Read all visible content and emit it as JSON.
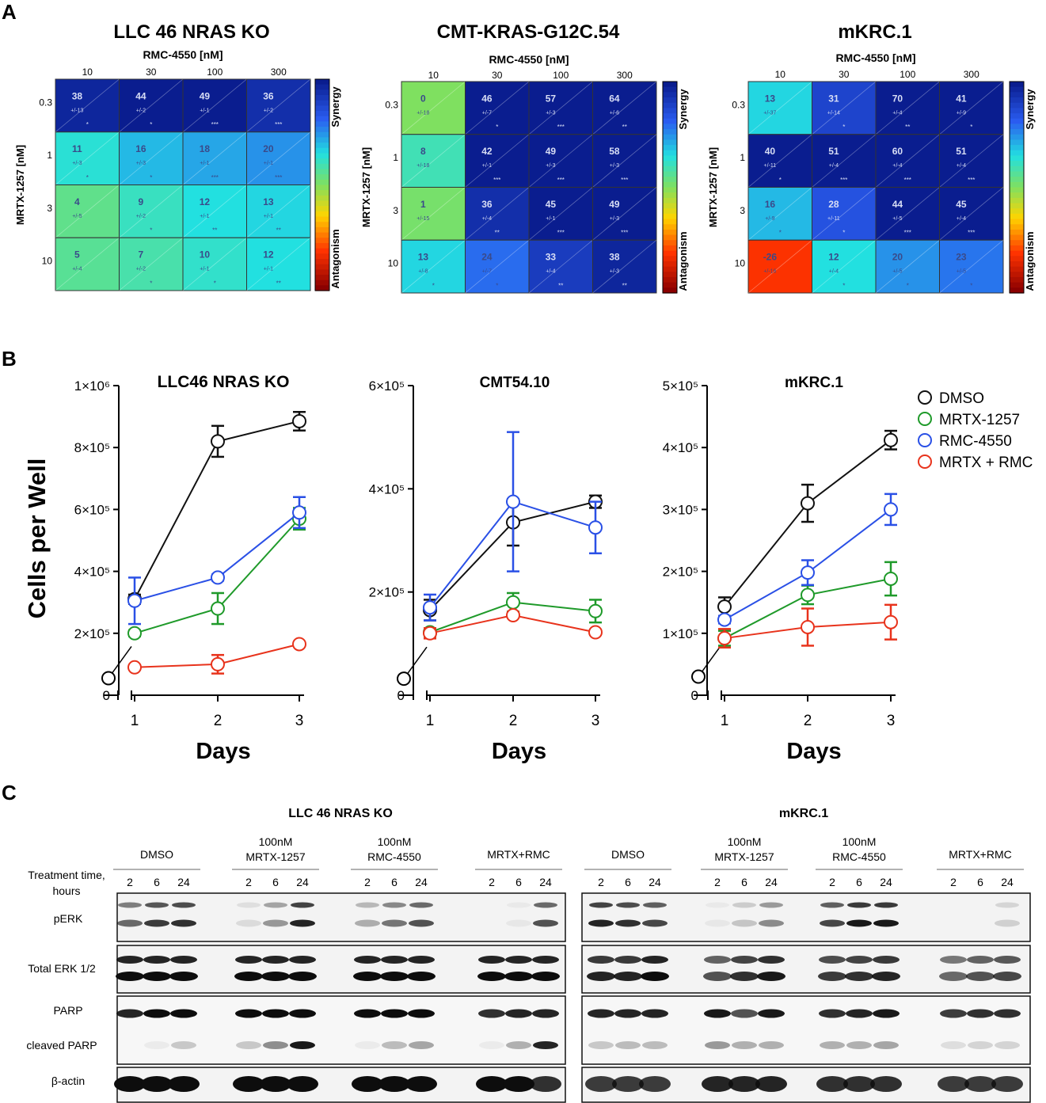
{
  "panel_labels": [
    "A",
    "B",
    "C"
  ],
  "colors": {
    "dmso": "#111111",
    "mrtx": "#1f9a2a",
    "rmc": "#2a50e6",
    "combo": "#e8331c"
  },
  "panelA": {
    "x_title": "RMC-4550 [nM]",
    "y_title": "MRTX-1257 [nM]",
    "x_ticks": [
      "10",
      "30",
      "100",
      "300"
    ],
    "y_ticks": [
      "0.3",
      "1",
      "3",
      "10"
    ],
    "cbar_top": "Synergy",
    "cbar_bottom": "Antagonism",
    "heatmaps": [
      {
        "title": "LLC 46 NRAS KO",
        "values": [
          [
            38,
            44,
            49,
            36
          ],
          [
            11,
            16,
            18,
            20
          ],
          [
            4,
            9,
            12,
            13
          ],
          [
            5,
            7,
            10,
            12
          ]
        ],
        "errors": [
          [
            "+/-13",
            "+/-2",
            "+/-1",
            "+/-2"
          ],
          [
            "+/-3",
            "+/-3",
            "+/-1",
            "+/-1"
          ],
          [
            "+/-5",
            "+/-2",
            "+/-1",
            "+/-1"
          ],
          [
            "+/-4",
            "+/-2",
            "+/-1",
            "+/-1"
          ]
        ],
        "sig": [
          [
            "*",
            "*",
            "***",
            "***"
          ],
          [
            "*",
            "*",
            "***",
            "***"
          ],
          [
            "",
            "*",
            "**",
            "**"
          ],
          [
            "",
            "*",
            "*",
            "**"
          ]
        ]
      },
      {
        "title": "CMT-KRAS-G12C.54",
        "values": [
          [
            0,
            46,
            57,
            64
          ],
          [
            8,
            42,
            49,
            58
          ],
          [
            1,
            36,
            45,
            49
          ],
          [
            13,
            24,
            33,
            38
          ]
        ],
        "errors": [
          [
            "+/-18",
            "+/-7",
            "+/-3",
            "+/-6"
          ],
          [
            "+/-18",
            "+/-1",
            "+/-3",
            "+/-3"
          ],
          [
            "+/-15",
            "+/-4",
            "+/-1",
            "+/-3"
          ],
          [
            "+/-8",
            "+/-7",
            "+/-4",
            "+/-3"
          ]
        ],
        "sig": [
          [
            "",
            "*",
            "***",
            "**"
          ],
          [
            "",
            "***",
            "***",
            "***"
          ],
          [
            "",
            "**",
            "***",
            "***"
          ],
          [
            "*",
            "*",
            "**",
            "**"
          ]
        ]
      },
      {
        "title": "mKRC.1",
        "values": [
          [
            13,
            31,
            70,
            41
          ],
          [
            40,
            51,
            60,
            51
          ],
          [
            16,
            28,
            44,
            45
          ],
          [
            -26,
            12,
            20,
            23
          ]
        ],
        "errors": [
          [
            "+/-37",
            "+/-14",
            "+/-4",
            "+/-9"
          ],
          [
            "+/-11",
            "+/-4",
            "+/-4",
            "+/-4"
          ],
          [
            "+/-9",
            "+/-11",
            "+/-5",
            "+/-4"
          ],
          [
            "+/-16",
            "+/-4",
            "+/-5",
            "+/-5"
          ]
        ],
        "sig": [
          [
            "",
            "*",
            "**",
            "*"
          ],
          [
            "*",
            "***",
            "***",
            "***"
          ],
          [
            "*",
            "*",
            "***",
            "***"
          ],
          [
            "",
            "*",
            "*",
            "*"
          ]
        ]
      }
    ]
  },
  "chart_data": [
    {
      "type": "line",
      "title": "LLC46 NRAS KO",
      "xlabel": "Days",
      "ylabel": "Cells per Well",
      "x": [
        1,
        2,
        3
      ],
      "baseline_day0": 55000,
      "ylim": [
        0,
        1000000
      ],
      "y_ticks": [
        "0",
        "2×10⁵",
        "4×10⁵",
        "6×10⁵",
        "8×10⁵",
        "1×10⁶"
      ],
      "x_ticks": [
        "1",
        "2",
        "3"
      ],
      "series": [
        {
          "name": "DMSO",
          "values": [
            310000,
            820000,
            885000
          ],
          "errors": [
            15000,
            50000,
            30000
          ]
        },
        {
          "name": "MRTX-1257",
          "values": [
            200000,
            280000,
            570000
          ],
          "errors": [
            10000,
            50000,
            35000
          ]
        },
        {
          "name": "RMC-4550",
          "values": [
            305000,
            380000,
            590000
          ],
          "errors": [
            75000,
            10000,
            50000
          ]
        },
        {
          "name": "MRTX + RMC",
          "values": [
            90000,
            100000,
            165000
          ],
          "errors": [
            5000,
            30000,
            5000
          ]
        }
      ]
    },
    {
      "type": "line",
      "title": "CMT54.10",
      "xlabel": "Days",
      "x": [
        1,
        2,
        3
      ],
      "baseline_day0": 32000,
      "ylim": [
        0,
        600000
      ],
      "y_ticks": [
        "0",
        "2×10⁵",
        "4×10⁵",
        "6×10⁵"
      ],
      "x_ticks": [
        "1",
        "2",
        "3"
      ],
      "series": [
        {
          "name": "DMSO",
          "values": [
            165000,
            335000,
            375000
          ],
          "errors": [
            20000,
            45000,
            12000
          ]
        },
        {
          "name": "MRTX-1257",
          "values": [
            122000,
            180000,
            163000
          ],
          "errors": [
            8000,
            18000,
            22000
          ]
        },
        {
          "name": "RMC-4550",
          "values": [
            170000,
            375000,
            325000
          ],
          "errors": [
            25000,
            135000,
            50000
          ]
        },
        {
          "name": "MRTX + RMC",
          "values": [
            120000,
            155000,
            122000
          ],
          "errors": [
            10000,
            5000,
            5000
          ]
        }
      ]
    },
    {
      "type": "line",
      "title": "mKRC.1",
      "xlabel": "Days",
      "x": [
        1,
        2,
        3
      ],
      "baseline_day0": 30000,
      "ylim": [
        0,
        500000
      ],
      "y_ticks": [
        "0",
        "1×10⁵",
        "2×10⁵",
        "3×10⁵",
        "4×10⁵",
        "5×10⁵"
      ],
      "x_ticks": [
        "1",
        "2",
        "3"
      ],
      "series": [
        {
          "name": "DMSO",
          "values": [
            143000,
            310000,
            412000
          ],
          "errors": [
            15000,
            30000,
            15000
          ]
        },
        {
          "name": "MRTX-1257",
          "values": [
            92000,
            162000,
            188000
          ],
          "errors": [
            12000,
            15000,
            27000
          ]
        },
        {
          "name": "RMC-4550",
          "values": [
            122000,
            198000,
            300000
          ],
          "errors": [
            6000,
            20000,
            25000
          ]
        },
        {
          "name": "MRTX + RMC",
          "values": [
            92000,
            110000,
            118000
          ],
          "errors": [
            15000,
            30000,
            28000
          ]
        }
      ]
    }
  ],
  "legend": [
    "DMSO",
    "MRTX-1257",
    "RMC-4550",
    "MRTX + RMC"
  ],
  "panelC": {
    "blots": [
      {
        "title": "LLC 46 NRAS KO",
        "groups": [
          {
            "label": [
              "DMSO"
            ],
            "times": [
              "2",
              "6",
              "24"
            ]
          },
          {
            "label": [
              "100nM",
              "MRTX-1257"
            ],
            "times": [
              "2",
              "6",
              "24"
            ]
          },
          {
            "label": [
              "100nM",
              "RMC-4550"
            ],
            "times": [
              "2",
              "6",
              "24"
            ]
          },
          {
            "label": [
              "MRTX+RMC"
            ],
            "times": [
              "2",
              "6",
              "24"
            ]
          }
        ]
      },
      {
        "title": "mKRC.1",
        "groups": [
          {
            "label": [
              "DMSO"
            ],
            "times": [
              "2",
              "6",
              "24"
            ]
          },
          {
            "label": [
              "100nM",
              "MRTX-1257"
            ],
            "times": [
              "2",
              "6",
              "24"
            ]
          },
          {
            "label": [
              "100nM",
              "RMC-4550"
            ],
            "times": [
              "2",
              "6",
              "24"
            ]
          },
          {
            "label": [
              "MRTX+RMC"
            ],
            "times": [
              "2",
              "6",
              "24"
            ]
          }
        ]
      }
    ],
    "treatment_label": [
      "Treatment time,",
      "hours"
    ],
    "rows": [
      "pERK",
      "Total ERK 1/2",
      "PARP",
      "cleaved PARP",
      "β-actin"
    ]
  }
}
